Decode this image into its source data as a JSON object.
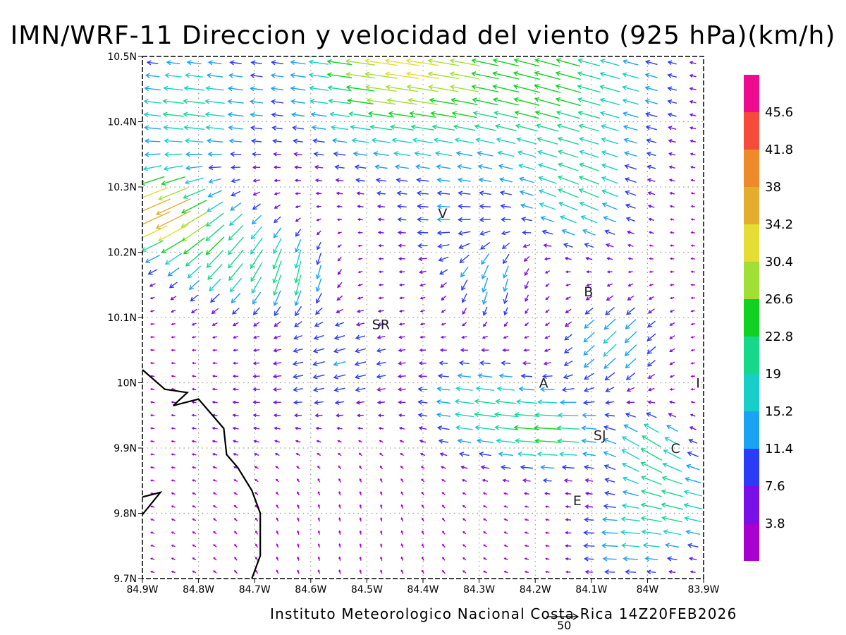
{
  "title": "IMN/WRF-11 Direccion y velocidad del viento (925 hPa)(km/h)",
  "footer": "Instituto Meteorologico Nacional Costa Rica 14Z20FEB2026",
  "reference_vector": {
    "label": "50",
    "magnitude_kmh": 50
  },
  "axes": {
    "lon_ticks": [
      "84.9W",
      "84.8W",
      "84.7W",
      "84.6W",
      "84.5W",
      "84.4W",
      "84.3W",
      "84.2W",
      "84.1W",
      "84W",
      "83.9W"
    ],
    "lat_ticks": [
      "10.5N",
      "10.4N",
      "10.3N",
      "10.2N",
      "10.1N",
      "10N",
      "9.9N",
      "9.8N",
      "9.7N"
    ],
    "lon_range": [
      -84.9,
      -83.9
    ],
    "lat_range": [
      9.7,
      10.5
    ],
    "grid": "dotted"
  },
  "colorbar": {
    "labels": [
      "45.6",
      "41.8",
      "38",
      "34.2",
      "30.4",
      "26.6",
      "22.8",
      "19",
      "15.2",
      "11.4",
      "7.6",
      "3.8"
    ],
    "colors": [
      "#ee0b8f",
      "#f44b3b",
      "#ef8a2a",
      "#e5ad2d",
      "#e3dd34",
      "#a0e034",
      "#10d220",
      "#16d88a",
      "#18cfc7",
      "#1aa3f5",
      "#2b3cf7",
      "#7a10e8",
      "#a800cf"
    ]
  },
  "places": [
    {
      "label": "V",
      "lon": -84.365,
      "lat": 10.26
    },
    {
      "label": "B",
      "lon": -84.105,
      "lat": 10.14
    },
    {
      "label": "SR",
      "lon": -84.475,
      "lat": 10.09
    },
    {
      "label": "A",
      "lon": -84.185,
      "lat": 10.0
    },
    {
      "label": "SJ",
      "lon": -84.085,
      "lat": 9.92
    },
    {
      "label": "C",
      "lon": -83.95,
      "lat": 9.9
    },
    {
      "label": "E",
      "lon": -84.125,
      "lat": 9.82
    },
    {
      "label": "I",
      "lon": -83.91,
      "lat": 10.0
    }
  ],
  "coastline": [
    [
      -84.9,
      10.02
    ],
    [
      -84.86,
      9.99
    ],
    [
      -84.82,
      9.985
    ],
    [
      -84.845,
      9.965
    ],
    [
      -84.8,
      9.975
    ],
    [
      -84.775,
      9.95
    ],
    [
      -84.755,
      9.93
    ],
    [
      -84.75,
      9.89
    ],
    [
      -84.73,
      9.87
    ],
    [
      -84.705,
      9.835
    ],
    [
      -84.69,
      9.8
    ],
    [
      -84.69,
      9.735
    ],
    [
      -84.705,
      9.7
    ]
  ],
  "coastline_island": [
    [
      -84.9,
      9.825
    ],
    [
      -84.868,
      9.832
    ],
    [
      -84.9,
      9.798
    ]
  ]
}
